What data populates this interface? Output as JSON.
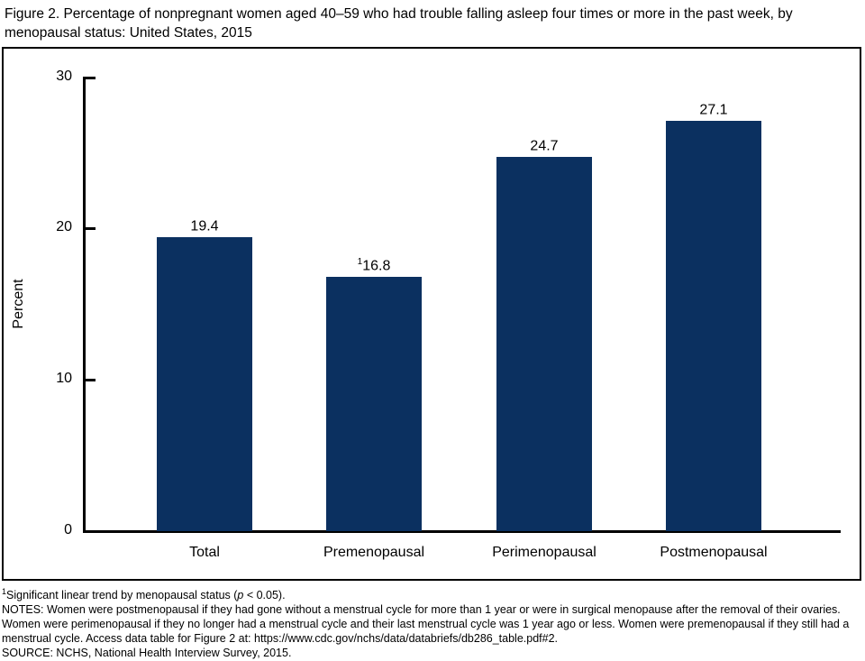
{
  "figure": {
    "title": "Figure 2. Percentage of nonpregnant women aged 40–59 who had trouble falling asleep four times or more in the past week, by menopausal status: United States, 2015"
  },
  "chart_data": {
    "type": "bar",
    "categories": [
      "Total",
      "Premenopausal",
      "Perimenopausal",
      "Postmenopausal"
    ],
    "values": [
      19.4,
      16.8,
      24.7,
      27.1
    ],
    "value_labels": [
      {
        "sup": "",
        "text": "19.4"
      },
      {
        "sup": "1",
        "text": "16.8"
      },
      {
        "sup": "",
        "text": "24.7"
      },
      {
        "sup": "",
        "text": "27.1"
      }
    ],
    "title": "",
    "xlabel": "",
    "ylabel": "Percent",
    "ylim": [
      0,
      30
    ],
    "yticks": [
      "0",
      "10",
      "20",
      "30"
    ],
    "grid": false,
    "legend": "none",
    "bar_color": "#0b3060",
    "axis_color": "#000000"
  },
  "footnotes": {
    "trend": {
      "sup": "1",
      "pre": "Significant linear trend by menopausal status (",
      "italic": "p",
      "post": " < 0.05)."
    },
    "notes": "NOTES: Women were postmenopausal if they had gone without a menstrual cycle for more than 1 year or were in surgical menopause after the removal of their ovaries. Women were perimenopausal if they no longer had a menstrual cycle and their last menstrual cycle was 1 year ago or less. Women were premenopausal if they still had a menstrual cycle. Access data table for Figure 2 at: https://www.cdc.gov/nchs/data/databriefs/db286_table.pdf#2.",
    "source": "SOURCE: NCHS, National Health Interview Survey, 2015."
  }
}
